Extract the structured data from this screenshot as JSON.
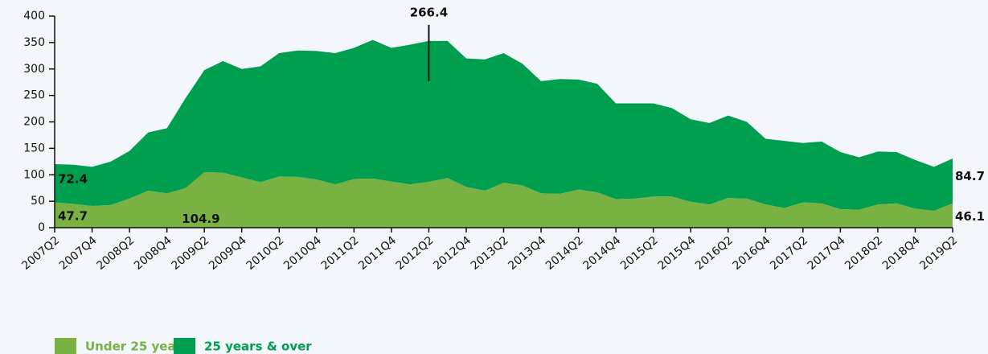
{
  "chart_data": {
    "type": "stacked_area",
    "categories": [
      "2007Q2",
      null,
      "2007Q4",
      null,
      "2008Q2",
      null,
      "2008Q4",
      null,
      "2009Q2",
      null,
      "2009Q4",
      null,
      "2010Q2",
      null,
      "2010Q4",
      null,
      "2011Q2",
      null,
      "2011Q4",
      null,
      "2012Q2",
      null,
      "2012Q4",
      null,
      "2013Q2",
      null,
      "2013Q4",
      null,
      "2014Q2",
      null,
      "2014Q4",
      null,
      "2015Q2",
      null,
      "2015Q4",
      null,
      "2016Q2",
      null,
      "2016Q4",
      null,
      "2017Q2",
      null,
      "2017Q4",
      null,
      "2018Q2",
      null,
      "2018Q4",
      null,
      "2019Q2"
    ],
    "series": [
      {
        "name": "Under 25 years",
        "color": "#7ab143",
        "values": [
          47.7,
          45,
          41,
          43,
          55,
          70,
          65,
          75,
          104.9,
          104,
          95,
          86,
          97,
          96,
          91,
          82,
          92,
          93,
          87,
          82,
          86.6,
          94,
          77,
          70,
          85,
          80,
          65,
          64,
          72,
          67,
          54,
          55,
          59,
          59,
          49,
          44,
          56,
          55,
          44,
          37,
          48,
          46,
          35,
          34,
          44,
          46,
          36,
          32,
          46.1
        ]
      },
      {
        "name": "25 years & over",
        "color": "#009e4f",
        "values": [
          72.4,
          74,
          74,
          82,
          90,
          110,
          123,
          170,
          193,
          211,
          205,
          219,
          233,
          239,
          243,
          248,
          248,
          262,
          253,
          264,
          266.4,
          259,
          243,
          248,
          245,
          230,
          212,
          217,
          208,
          205,
          181,
          180,
          176,
          167,
          156,
          154,
          156,
          145,
          124,
          127,
          112,
          117,
          108,
          99,
          100,
          97,
          92,
          83,
          84.7
        ]
      }
    ],
    "ylim": [
      0,
      400
    ],
    "yticks": [
      0,
      50,
      100,
      150,
      200,
      250,
      300,
      350,
      400
    ]
  }
}
